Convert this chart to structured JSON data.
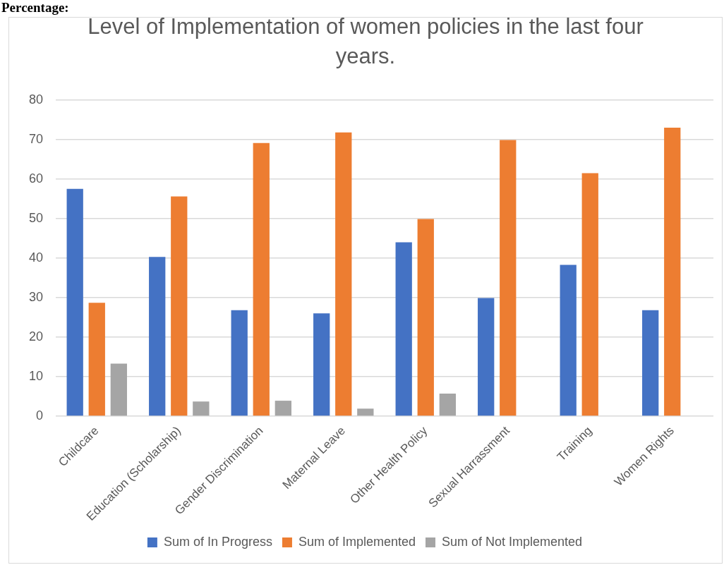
{
  "chart_data": {
    "type": "bar",
    "title": "Level of Implementation of women policies in the last four years.",
    "annotations": [
      "Percentage:"
    ],
    "categories": [
      "Childcare",
      "Education (Scholarship)",
      "Gender Discrimination",
      "Maternal Leave",
      "Other Health Policy",
      "Sexual Harrassment",
      "Training",
      "Women Rights"
    ],
    "series": [
      {
        "name": "Sum of In Progress",
        "color": "#4472c4",
        "values": [
          57.5,
          40.3,
          26.8,
          26,
          44,
          29.9,
          38.3,
          26.8
        ]
      },
      {
        "name": "Sum of Implemented",
        "color": "#ed7d31",
        "values": [
          28.7,
          55.6,
          69.1,
          71.8,
          49.9,
          69.9,
          61.5,
          73
        ]
      },
      {
        "name": "Sum of Not Implemented",
        "color": "#a5a5a5",
        "values": [
          13.3,
          3.7,
          3.9,
          1.9,
          5.7,
          null,
          null,
          null
        ]
      }
    ],
    "ylim": [
      0,
      80
    ],
    "yticks": [
      0,
      10,
      20,
      30,
      40,
      50,
      60,
      70,
      80
    ],
    "grid": "y",
    "legend": "bottom"
  }
}
